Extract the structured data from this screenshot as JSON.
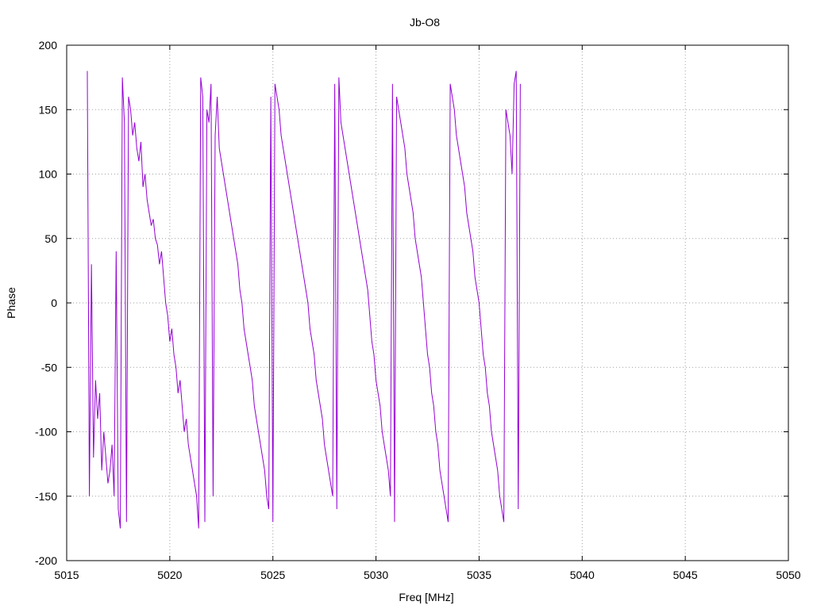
{
  "chart_data": {
    "type": "line",
    "title": "Jb-O8",
    "xlabel": "Freq [MHz]",
    "ylabel": "Phase",
    "xlim": [
      5015,
      5050
    ],
    "ylim": [
      -200,
      200
    ],
    "xticks": [
      "5015",
      "5020",
      "5025",
      "5030",
      "5035",
      "5040",
      "5045",
      "5050"
    ],
    "yticks": [
      "200",
      "150",
      "100",
      "50",
      "0",
      "-50",
      "-100",
      "-150",
      "-200"
    ],
    "grid": true,
    "legend": "none",
    "series_color": "#9400d3",
    "series": [
      {
        "x_start": 5016.0,
        "x_step": 0.1,
        "y": [
          180,
          -150,
          30,
          -120,
          -60,
          -90,
          -70,
          -130,
          -100,
          -120,
          -140,
          -130,
          -110,
          -150,
          40,
          -160,
          -175,
          175,
          140,
          -170,
          160,
          150,
          130,
          140,
          120,
          110,
          125,
          90,
          100,
          80,
          70,
          60,
          65,
          50,
          45,
          30,
          40,
          20,
          0,
          -10,
          -30,
          -20,
          -40,
          -50,
          -70,
          -60,
          -80,
          -100,
          -90,
          -110,
          -120,
          -130,
          -140,
          -150,
          -175,
          175,
          160,
          -170,
          150,
          140,
          170,
          -150,
          130,
          160,
          120,
          110,
          100,
          90,
          80,
          70,
          60,
          50,
          40,
          30,
          10,
          0,
          -20,
          -30,
          -40,
          -50,
          -60,
          -80,
          -90,
          -100,
          -110,
          -120,
          -130,
          -150,
          -160,
          160,
          -170,
          170,
          160,
          150,
          130,
          120,
          110,
          100,
          90,
          80,
          70,
          60,
          50,
          40,
          30,
          20,
          10,
          0,
          -20,
          -30,
          -40,
          -60,
          -70,
          -80,
          -90,
          -110,
          -120,
          -130,
          -140,
          -150,
          170,
          -160,
          175,
          140,
          130,
          120,
          110,
          100,
          90,
          80,
          70,
          60,
          50,
          40,
          30,
          20,
          10,
          -10,
          -30,
          -40,
          -60,
          -70,
          -80,
          -100,
          -110,
          -120,
          -130,
          -150,
          170,
          -170,
          160,
          150,
          140,
          130,
          120,
          100,
          90,
          80,
          70,
          50,
          40,
          30,
          20,
          0,
          -20,
          -40,
          -50,
          -70,
          -80,
          -100,
          -110,
          -130,
          -140,
          -150,
          -160,
          -170,
          170,
          160,
          150,
          130,
          120,
          110,
          100,
          90,
          70,
          60,
          50,
          40,
          20,
          10,
          0,
          -20,
          -40,
          -50,
          -70,
          -80,
          -100,
          -110,
          -120,
          -130,
          -150,
          -160,
          -170,
          150,
          140,
          130,
          100,
          170,
          180,
          -160,
          170
        ]
      }
    ]
  }
}
